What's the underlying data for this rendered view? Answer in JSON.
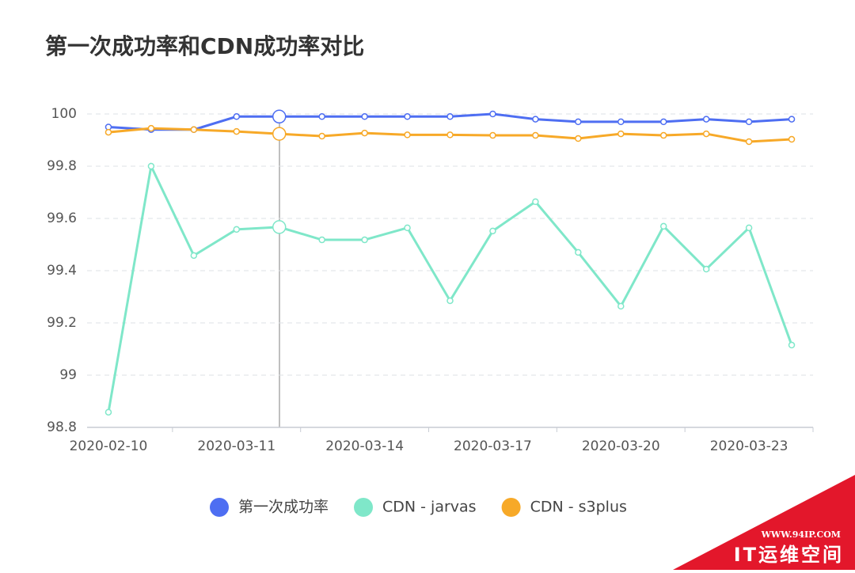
{
  "chart_data": {
    "type": "line",
    "title": "第一次成功率和CDN成功率对比",
    "categories": [
      "2020-02-10",
      null,
      null,
      "2020-03-11",
      null,
      null,
      "2020-03-14",
      null,
      null,
      "2020-03-17",
      null,
      null,
      "2020-03-20",
      null,
      null,
      "2020-03-23",
      null
    ],
    "series": [
      {
        "name": "第一次成功率",
        "color": "#4e6ef2",
        "values": [
          99.95,
          99.94,
          99.94,
          99.99,
          99.99,
          99.99,
          99.99,
          99.99,
          99.99,
          100.0,
          99.98,
          99.97,
          99.97,
          99.97,
          99.98,
          99.97,
          99.98
        ]
      },
      {
        "name": "CDN - jarvas",
        "color": "#7fe7c9",
        "values": [
          98.858,
          99.8,
          99.458,
          99.558,
          99.567,
          99.518,
          99.518,
          99.564,
          99.285,
          99.552,
          99.664,
          99.47,
          99.264,
          99.57,
          99.406,
          99.564,
          99.115
        ]
      },
      {
        "name": "CDN - s3plus",
        "color": "#f7a928",
        "values": [
          99.93,
          99.945,
          99.94,
          99.933,
          99.924,
          99.915,
          99.927,
          99.92,
          99.92,
          99.918,
          99.918,
          99.906,
          99.924,
          99.918,
          99.924,
          99.894,
          99.903
        ]
      }
    ],
    "ylim": [
      98.8,
      100
    ],
    "yticks": [
      98.8,
      99,
      99.2,
      99.4,
      99.6,
      99.8,
      100
    ],
    "grid": true,
    "legend": "bottom"
  },
  "watermark": {
    "url": "WWW.94IP.COM",
    "name": "IT运维空间"
  }
}
